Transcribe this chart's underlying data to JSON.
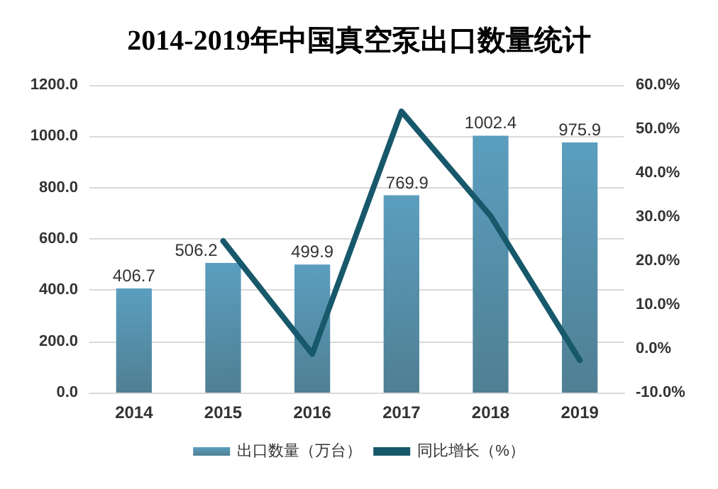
{
  "chart_data": {
    "type": "bar",
    "title": "2014-2019年中国真空泵出口数量统计",
    "categories": [
      "2014",
      "2015",
      "2016",
      "2017",
      "2018",
      "2019"
    ],
    "series": [
      {
        "name": "出口数量（万台）",
        "color": "#5b9ebf",
        "values": [
          406.7,
          506.2,
          499.9,
          769.9,
          1002.4,
          975.9
        ],
        "value_labels": [
          "406.7",
          "506.2",
          "499.9",
          "769.9",
          "1002.4",
          "975.9"
        ]
      },
      {
        "name": "同比增长（%）",
        "type": "line",
        "axis": "y2",
        "color": "#17586b",
        "values": [
          null,
          24.5,
          -1.2,
          54.0,
          30.2,
          -2.6
        ]
      }
    ],
    "ylim": [
      0,
      1200
    ],
    "yticks": [
      {
        "value": 0,
        "label": "0.0"
      },
      {
        "value": 200,
        "label": "200.0"
      },
      {
        "value": 400,
        "label": "400.0"
      },
      {
        "value": 600,
        "label": "600.0"
      },
      {
        "value": 800,
        "label": "800.0"
      },
      {
        "value": 1000,
        "label": "1000.0"
      },
      {
        "value": 1200,
        "label": "1200.0"
      }
    ],
    "y2lim": [
      -10,
      60
    ],
    "y2ticks": [
      {
        "value": -10,
        "label": "-10.0%"
      },
      {
        "value": 0,
        "label": "0.0%"
      },
      {
        "value": 10,
        "label": "10.0%"
      },
      {
        "value": 20,
        "label": "20.0%"
      },
      {
        "value": 30,
        "label": "30.0%"
      },
      {
        "value": 40,
        "label": "40.0%"
      },
      {
        "value": 50,
        "label": "50.0%"
      },
      {
        "value": 60,
        "label": "60.0%"
      }
    ],
    "grid": "y",
    "legend": "bottom",
    "marker": "none",
    "line_style": "solid"
  }
}
